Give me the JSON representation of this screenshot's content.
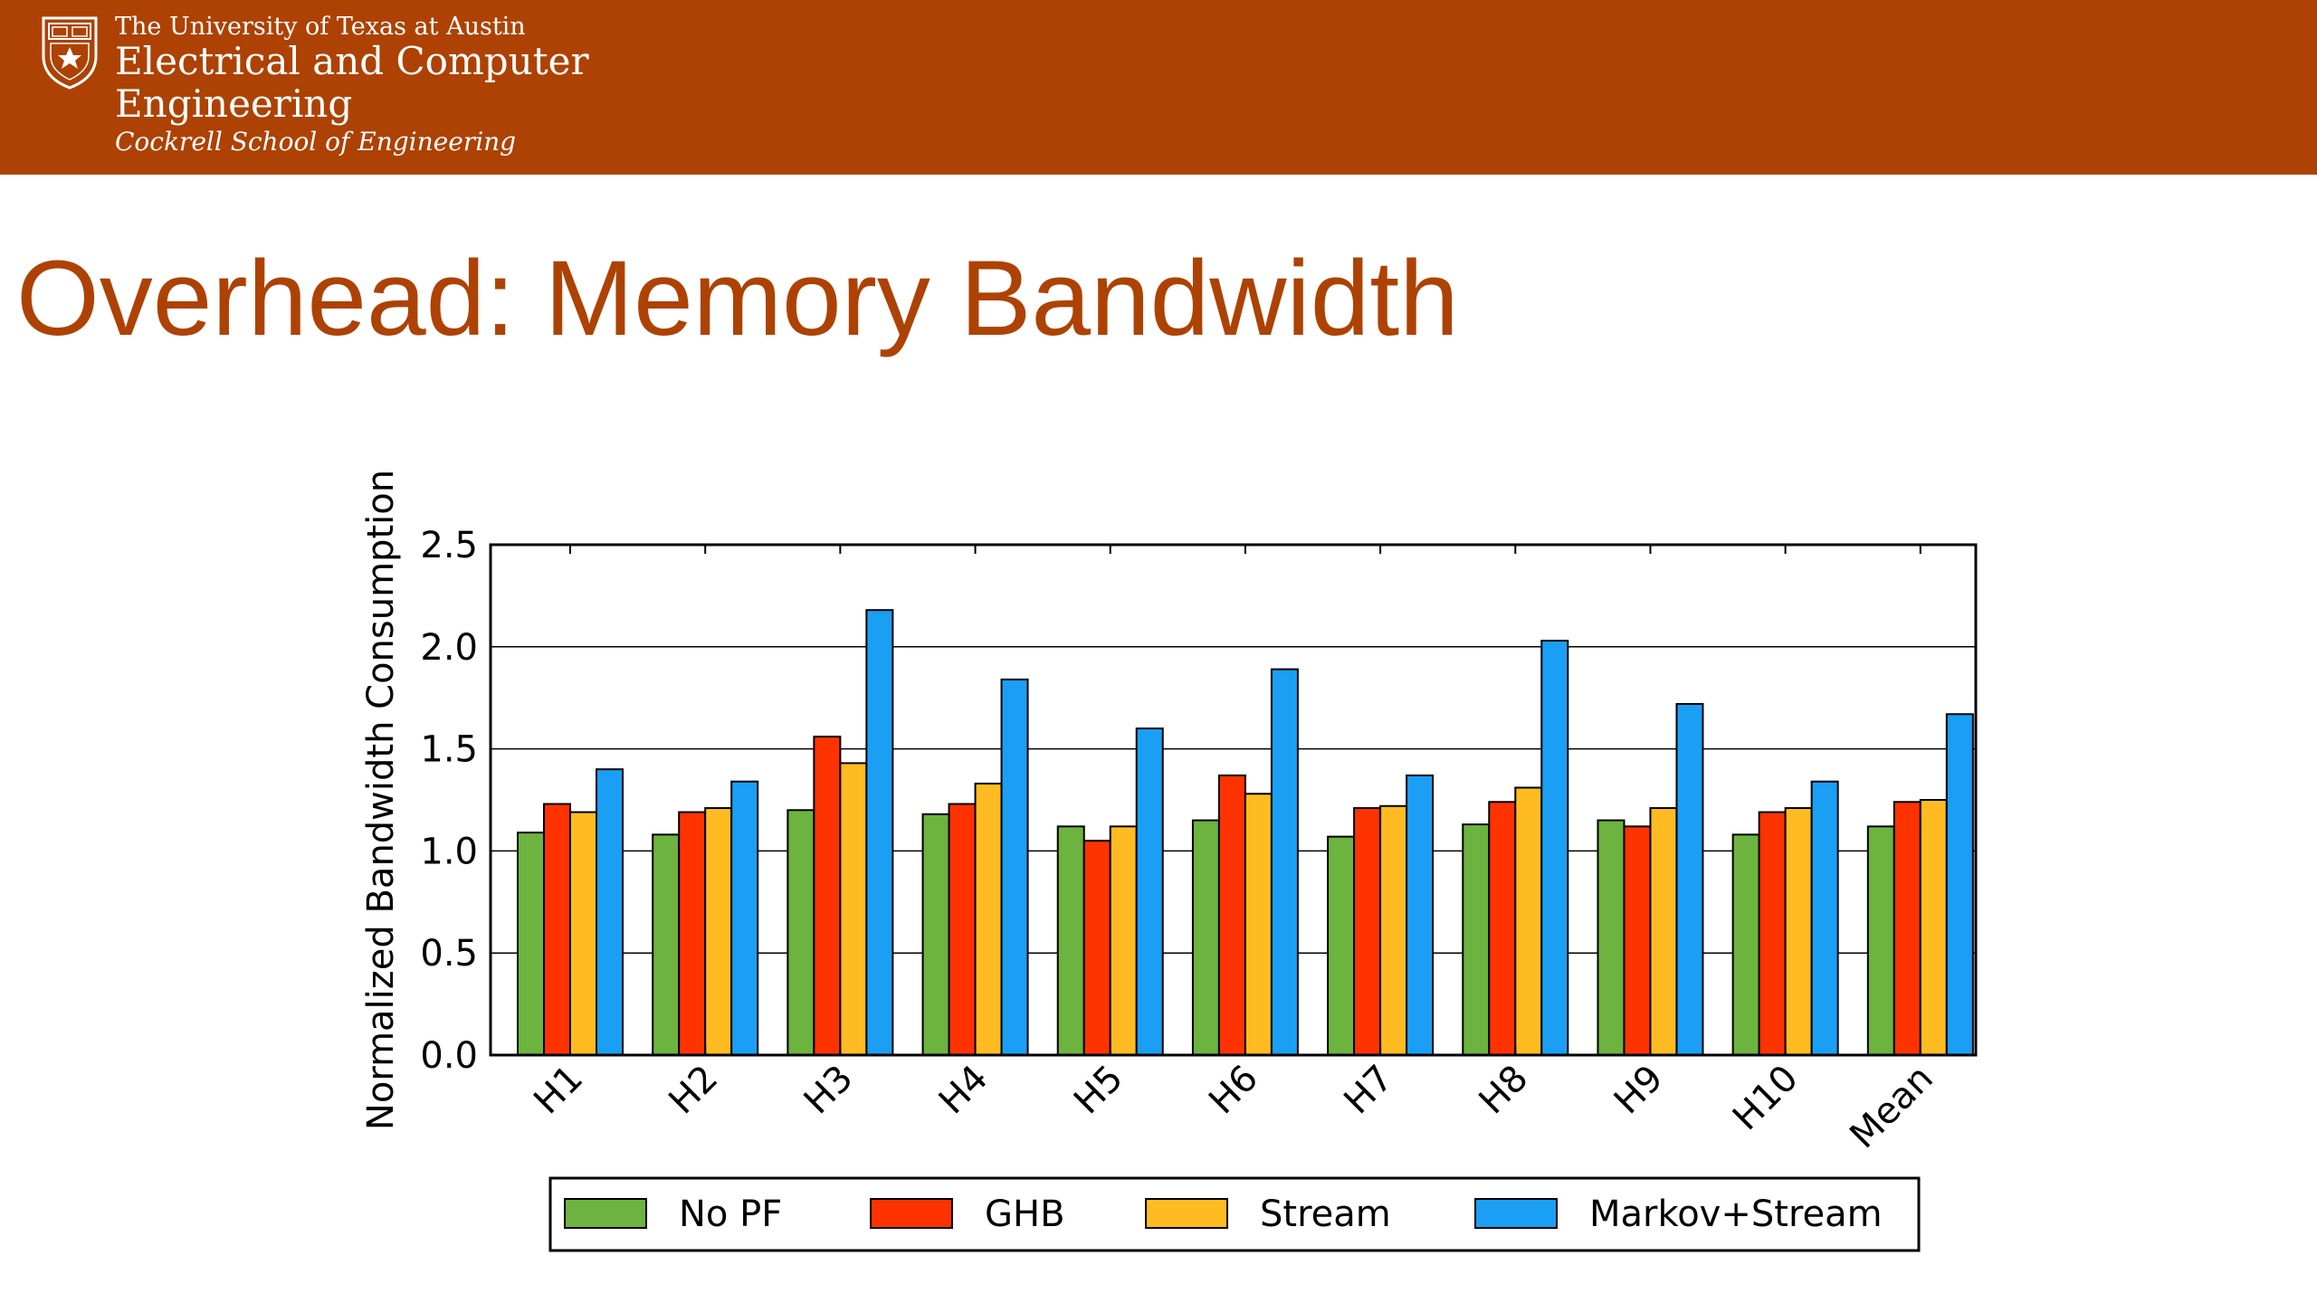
{
  "header": {
    "university": "The University of Texas at Austin",
    "department_line1": "Electrical and Computer",
    "department_line2": "Engineering",
    "school": "Cockrell School of Engineering"
  },
  "title": "Overhead: Memory Bandwidth",
  "colors": {
    "header_bg": "#ad4204",
    "title": "#ad4204"
  },
  "chart_data": {
    "type": "bar",
    "ylabel": "Normalized Bandwidth Consumption",
    "xlabel": "",
    "ylim": [
      0,
      2.5
    ],
    "yticks": [
      "0.0",
      "0.5",
      "1.0",
      "1.5",
      "2.0",
      "2.5"
    ],
    "grid": "horizontal",
    "legend_position": "bottom",
    "categories": [
      "H1",
      "H2",
      "H3",
      "H4",
      "H5",
      "H6",
      "H7",
      "H8",
      "H9",
      "H10",
      "Mean"
    ],
    "series": [
      {
        "name": "No PF",
        "color": "#6db33f",
        "values": [
          1.09,
          1.08,
          1.2,
          1.18,
          1.12,
          1.15,
          1.07,
          1.13,
          1.15,
          1.08,
          1.12
        ]
      },
      {
        "name": "GHB",
        "color": "#ff3300",
        "values": [
          1.23,
          1.19,
          1.56,
          1.23,
          1.05,
          1.37,
          1.21,
          1.24,
          1.12,
          1.19,
          1.24
        ]
      },
      {
        "name": "Stream",
        "color": "#ffbb22",
        "values": [
          1.19,
          1.21,
          1.43,
          1.33,
          1.12,
          1.28,
          1.22,
          1.31,
          1.21,
          1.21,
          1.25
        ]
      },
      {
        "name": "Markov+Stream",
        "color": "#1a9ff5",
        "values": [
          1.4,
          1.34,
          2.18,
          1.84,
          1.6,
          1.89,
          1.37,
          2.03,
          1.72,
          1.34,
          1.67
        ]
      }
    ]
  }
}
